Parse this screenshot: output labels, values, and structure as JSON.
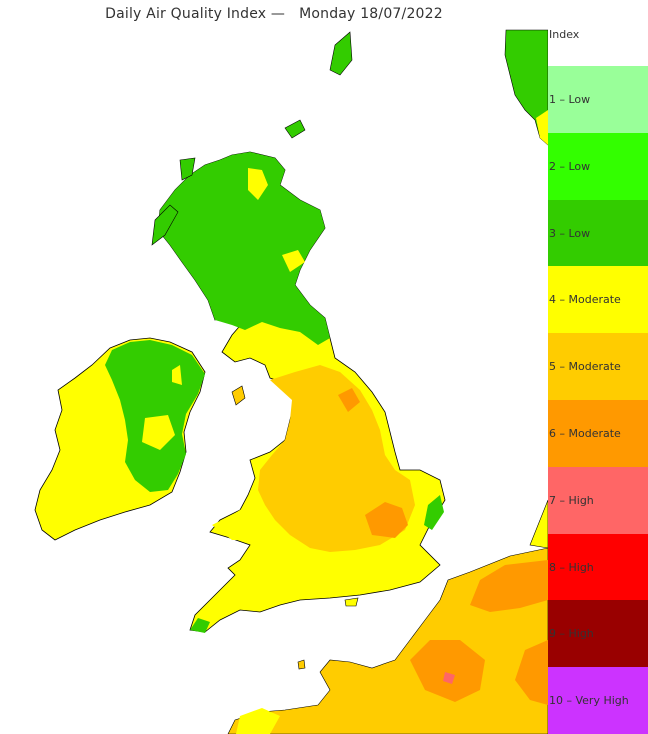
{
  "title": "Daily Air Quality Index —   Monday 18/07/2022",
  "legend": {
    "heading": "Index",
    "items": [
      {
        "label": "1 – Low",
        "color": "#99ff99"
      },
      {
        "label": "2 – Low",
        "color": "#33ff00"
      },
      {
        "label": "3 – Low",
        "color": "#33cc00"
      },
      {
        "label": "4 – Moderate",
        "color": "#ffff00"
      },
      {
        "label": "5 – Moderate",
        "color": "#ffcc00"
      },
      {
        "label": "6 – Moderate",
        "color": "#ff9900"
      },
      {
        "label": "7 – High",
        "color": "#ff6666"
      },
      {
        "label": "8 – High",
        "color": "#ff0000"
      },
      {
        "label": "9 – High",
        "color": "#990000"
      },
      {
        "label": "10 – Very High",
        "color": "#cc33ff"
      }
    ]
  }
}
